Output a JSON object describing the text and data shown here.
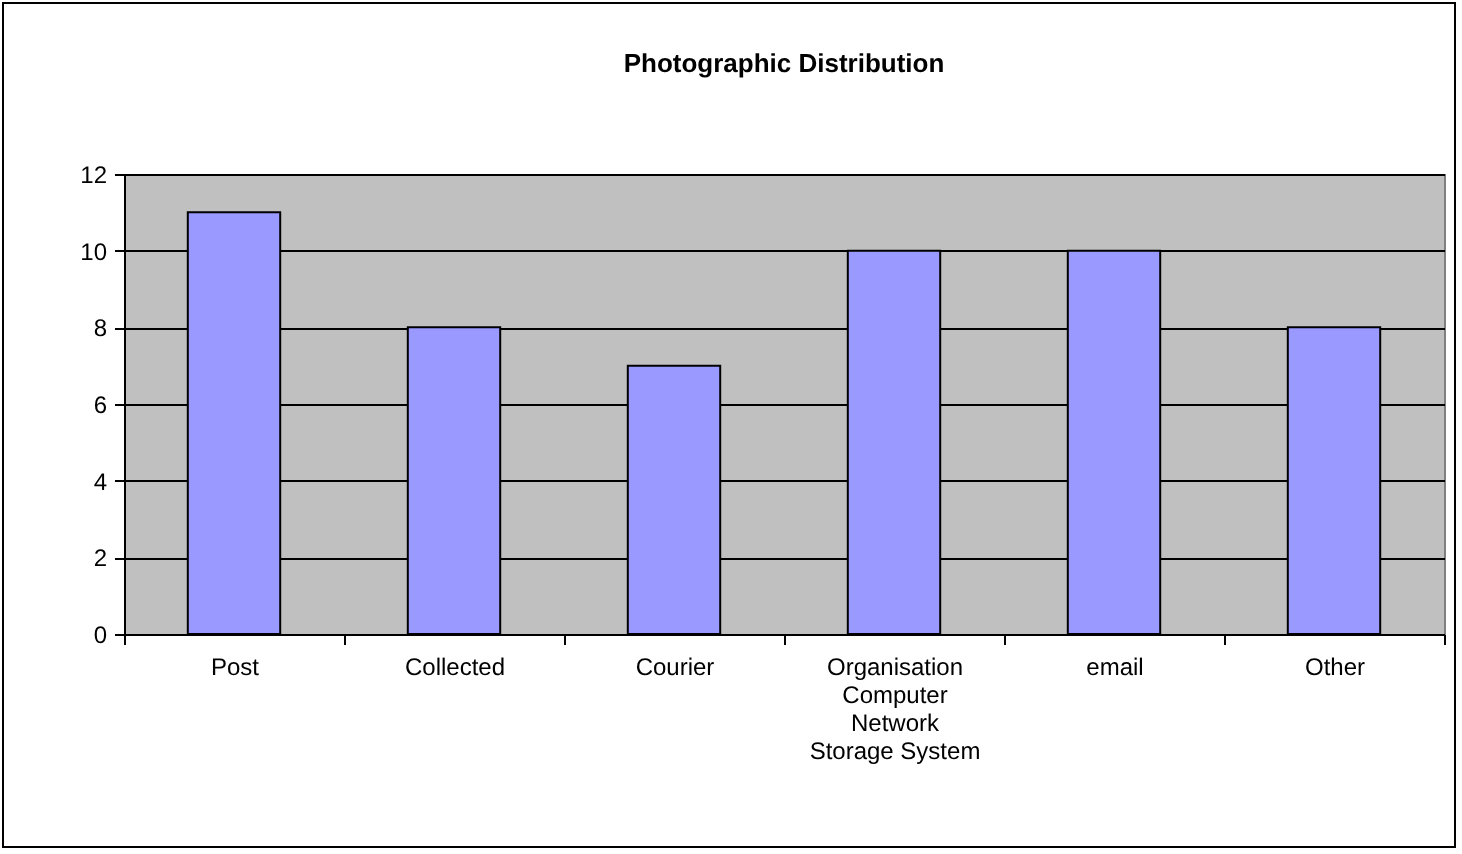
{
  "chart_data": {
    "type": "bar",
    "title": "Photographic Distribution",
    "categories": [
      "Post",
      "Collected",
      "Courier",
      "Organisation\nComputer\nNetwork\nStorage System",
      "email",
      "Other"
    ],
    "values": [
      11,
      8,
      7,
      10,
      10,
      8
    ],
    "color": "#9999ff",
    "ylim": [
      0,
      12
    ],
    "yticks": [
      0,
      2,
      4,
      6,
      8,
      10,
      12
    ],
    "grid": "y"
  }
}
